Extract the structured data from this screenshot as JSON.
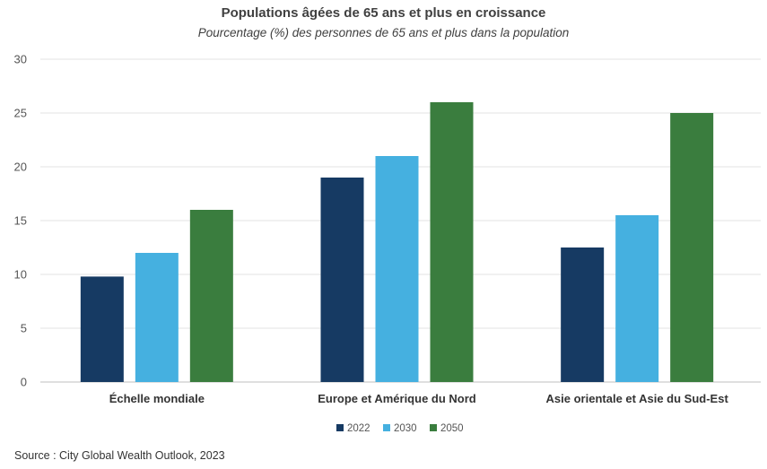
{
  "chart_data": {
    "type": "bar",
    "title": "Populations âgées de 65 ans et plus en croissance",
    "subtitle": "Pourcentage (%) des personnes de 65 ans et plus dans la population",
    "categories": [
      "Échelle mondiale",
      "Europe et Amérique du Nord",
      "Asie orientale et Asie du Sud-Est"
    ],
    "series": [
      {
        "name": "2022",
        "color": "#163a63",
        "values": [
          9.8,
          19,
          12.5
        ]
      },
      {
        "name": "2030",
        "color": "#45b0e0",
        "values": [
          12,
          21,
          15.5
        ]
      },
      {
        "name": "2050",
        "color": "#3a7d3e",
        "values": [
          16,
          26,
          25
        ]
      }
    ],
    "ylim": [
      0,
      30
    ],
    "yticks": [
      0,
      5,
      10,
      15,
      20,
      25,
      30
    ],
    "grid": true,
    "legend": "bottom-center"
  },
  "source": "Source : City Global Wealth Outlook, 2023"
}
